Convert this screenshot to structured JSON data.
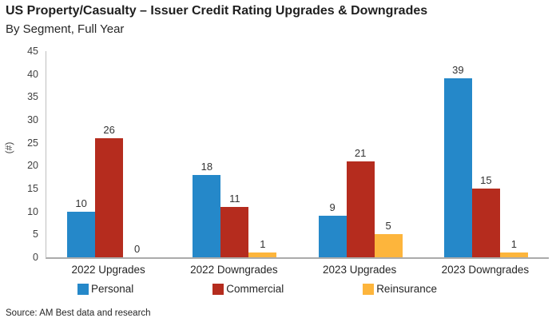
{
  "header": {
    "title": "US Property/Casualty – Issuer Credit Rating Upgrades & Downgrades",
    "subtitle": "By Segment, Full Year"
  },
  "chart_data": {
    "type": "bar",
    "title": "US Property/Casualty – Issuer Credit Rating Upgrades & Downgrades",
    "subtitle": "By Segment, Full Year",
    "categories": [
      "2022 Upgrades",
      "2022 Downgrades",
      "2023 Upgrades",
      "2023 Downgrades"
    ],
    "series": [
      {
        "name": "Personal",
        "color": "#2588C9",
        "values": [
          10,
          18,
          9,
          39
        ]
      },
      {
        "name": "Commercial",
        "color": "#B52C1E",
        "values": [
          26,
          11,
          21,
          15
        ]
      },
      {
        "name": "Reinsurance",
        "color": "#FDB53C",
        "values": [
          0,
          1,
          5,
          1
        ]
      }
    ],
    "xlabel": "",
    "ylabel": "(#)",
    "ylim": [
      0,
      45
    ],
    "ytick_step": 5,
    "grid": false,
    "legend_position": "bottom",
    "data_labels": true
  },
  "source": "Source: AM Best data and research"
}
